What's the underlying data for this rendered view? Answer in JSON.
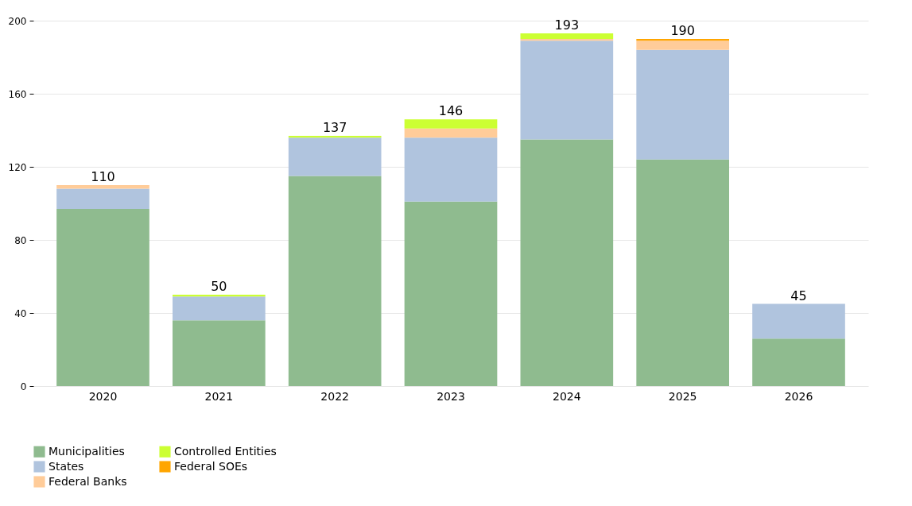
{
  "chart_data": {
    "type": "bar",
    "stacked": true,
    "categories": [
      "2020",
      "2021",
      "2022",
      "2023",
      "2024",
      "2025",
      "2026"
    ],
    "series": [
      {
        "name": "Municipalities",
        "color": "#8fbb8f",
        "values": [
          97,
          36,
          115,
          101,
          135,
          124,
          26
        ]
      },
      {
        "name": "States",
        "color": "#b0c4de",
        "values": [
          11,
          13,
          21,
          35,
          54,
          60,
          19
        ]
      },
      {
        "name": "Federal Banks",
        "color": "#ffcc99",
        "values": [
          2,
          0,
          0,
          5,
          1,
          5,
          0
        ]
      },
      {
        "name": "Controlled Entities",
        "color": "#ccff33",
        "values": [
          0,
          1,
          1,
          5,
          3,
          0,
          0
        ]
      },
      {
        "name": "Federal SOEs",
        "color": "#ffa500",
        "values": [
          0,
          0,
          0,
          0,
          0,
          1,
          0
        ]
      }
    ],
    "totals": [
      "110",
      "50",
      "137",
      "146",
      "193",
      "190",
      "45"
    ],
    "ylim": [
      0,
      200
    ],
    "yticks": [
      0,
      40,
      80,
      120,
      160,
      200
    ],
    "grid": "y",
    "legend": "bottom"
  }
}
